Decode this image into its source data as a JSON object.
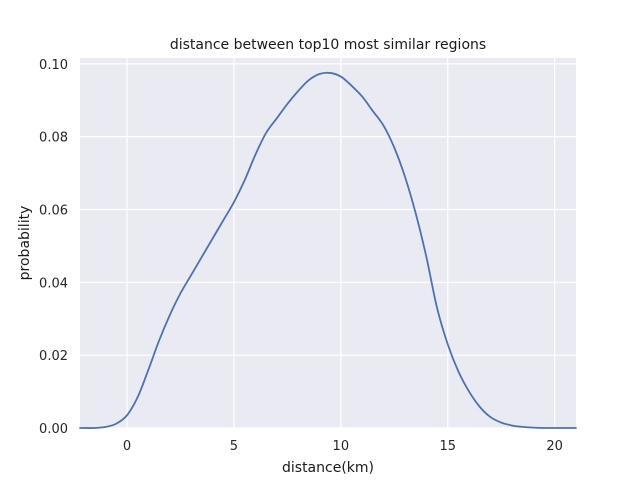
{
  "chart_data": {
    "type": "line",
    "title": "distance between top10 most similar regions",
    "xlabel": "distance(km)",
    "ylabel": "probability",
    "xlim": [
      -2.2,
      21.0
    ],
    "ylim": [
      0.0,
      0.1016
    ],
    "xticks": [
      0,
      5,
      10,
      15,
      20
    ],
    "xtick_labels": [
      "0",
      "5",
      "10",
      "15",
      "20"
    ],
    "yticks": [
      0.0,
      0.02,
      0.04,
      0.06,
      0.08,
      0.1
    ],
    "ytick_labels": [
      "0.00",
      "0.02",
      "0.04",
      "0.06",
      "0.08",
      "0.10"
    ],
    "grid": true,
    "legend": "none",
    "series": [
      {
        "color": "#4c72b0",
        "x": [
          -2.2,
          -1.5,
          -1.0,
          -0.5,
          0.0,
          0.5,
          1.0,
          1.5,
          2.0,
          2.5,
          3.0,
          3.5,
          4.0,
          4.5,
          5.0,
          5.5,
          6.0,
          6.5,
          7.0,
          7.5,
          8.0,
          8.5,
          9.0,
          9.5,
          10.0,
          10.5,
          11.0,
          11.5,
          12.0,
          12.5,
          13.0,
          13.5,
          14.0,
          14.5,
          15.0,
          15.5,
          16.0,
          16.5,
          17.0,
          17.5,
          18.0,
          18.5,
          19.0,
          19.5,
          20.0,
          20.5,
          21.0
        ],
        "y": [
          0.0,
          0.0,
          0.0003,
          0.0012,
          0.0035,
          0.0085,
          0.016,
          0.024,
          0.031,
          0.037,
          0.042,
          0.047,
          0.052,
          0.057,
          0.062,
          0.068,
          0.075,
          0.081,
          0.085,
          0.089,
          0.0925,
          0.0955,
          0.0972,
          0.0975,
          0.0965,
          0.094,
          0.091,
          0.087,
          0.083,
          0.077,
          0.069,
          0.059,
          0.047,
          0.033,
          0.023,
          0.0155,
          0.01,
          0.0058,
          0.003,
          0.0015,
          0.0007,
          0.0003,
          0.0001,
          0.0,
          0.0,
          0.0,
          0.0
        ]
      }
    ]
  }
}
